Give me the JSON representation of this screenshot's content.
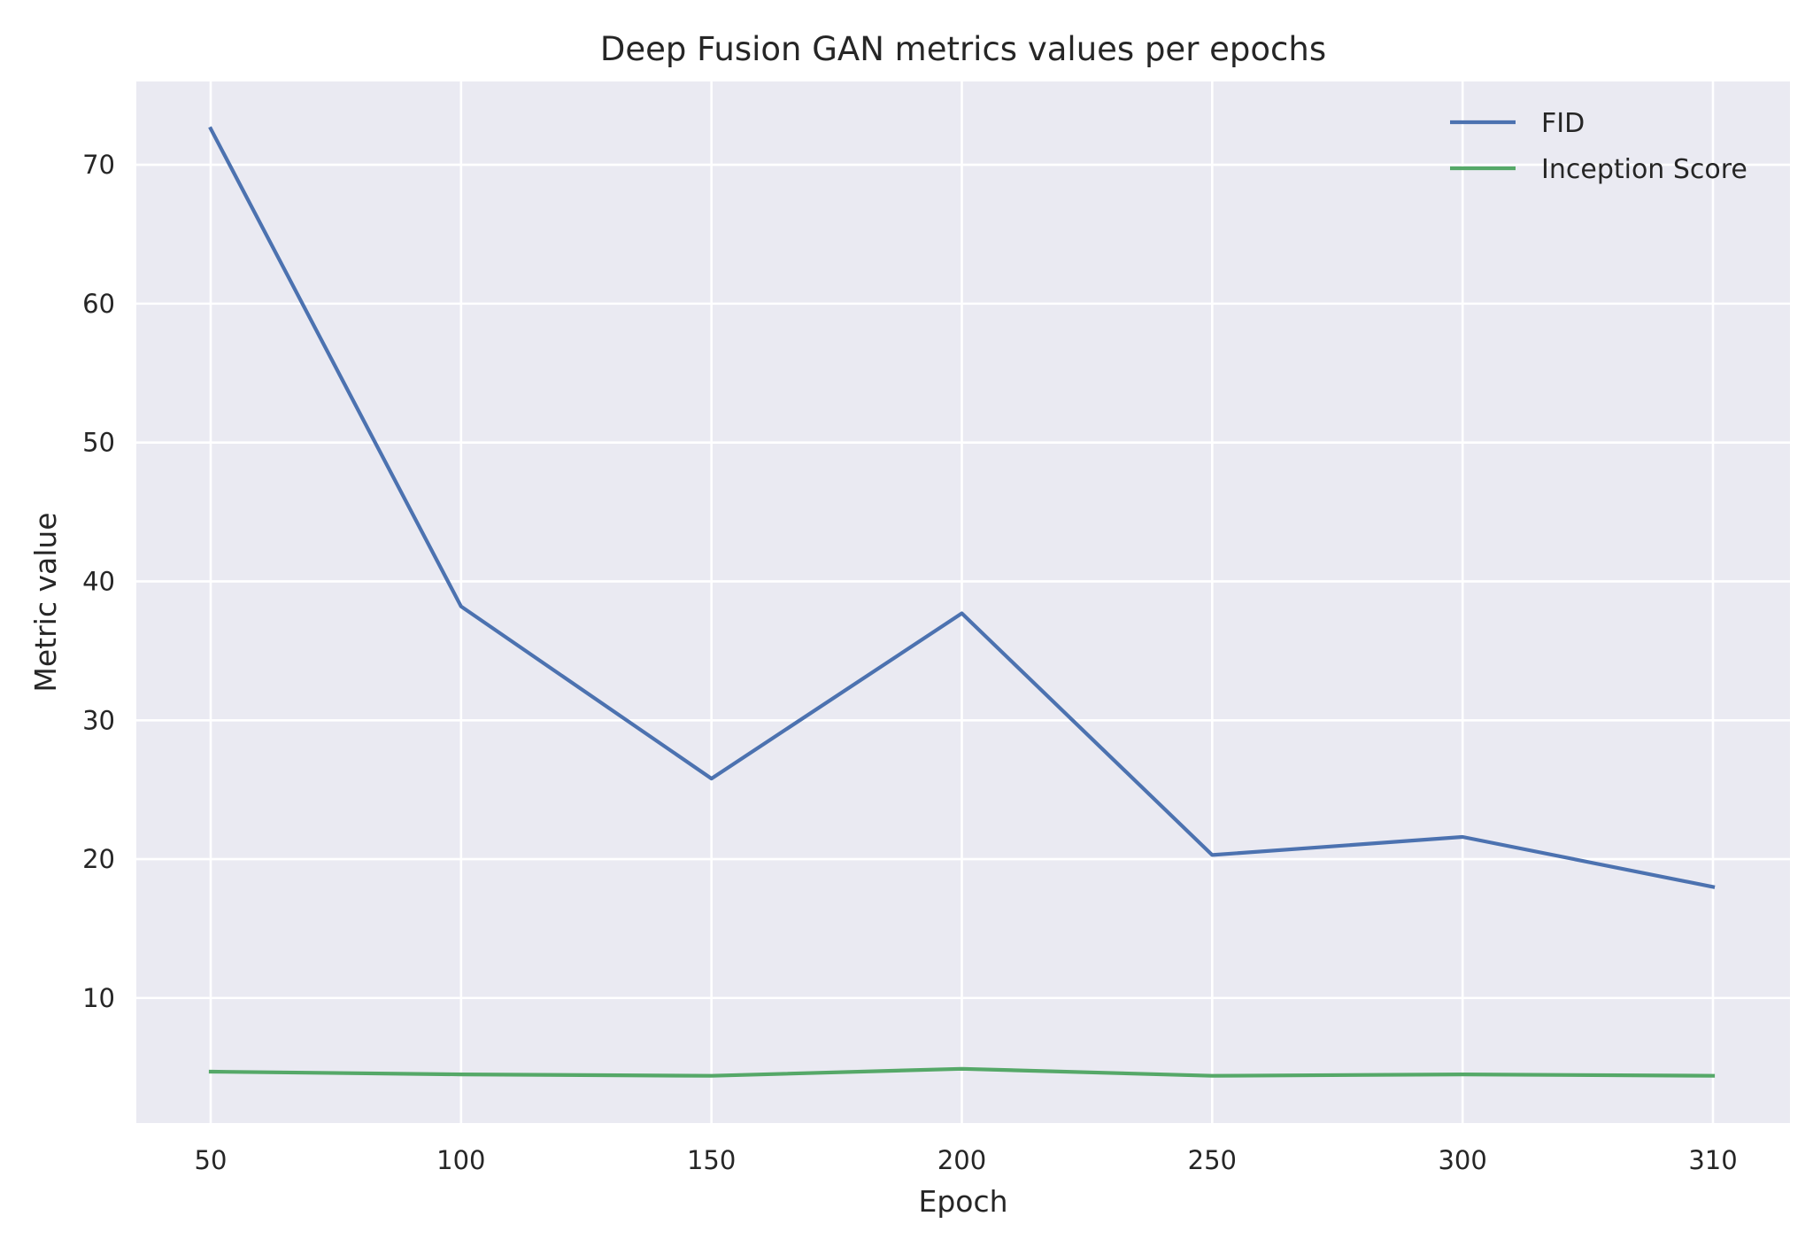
{
  "chart_data": {
    "type": "line",
    "title": "Deep Fusion GAN metrics values per epochs",
    "xlabel": "Epoch",
    "ylabel": "Metric value",
    "categories": [
      "50",
      "100",
      "150",
      "200",
      "250",
      "300",
      "310"
    ],
    "ylim": [
      1.0,
      76.0
    ],
    "yticks": [
      "10",
      "20",
      "30",
      "40",
      "50",
      "60",
      "70"
    ],
    "grid": true,
    "legend_position": "top-right",
    "series": [
      {
        "name": "FID",
        "color": "#4c72b0",
        "values": [
          72.6,
          38.2,
          25.8,
          37.7,
          20.3,
          21.6,
          18.0
        ]
      },
      {
        "name": "Inception Score",
        "color": "#55a868",
        "values": [
          4.7,
          4.5,
          4.4,
          4.9,
          4.4,
          4.5,
          4.4
        ]
      }
    ],
    "background_color": "#eaeaf2",
    "grid_color": "#ffffff"
  }
}
